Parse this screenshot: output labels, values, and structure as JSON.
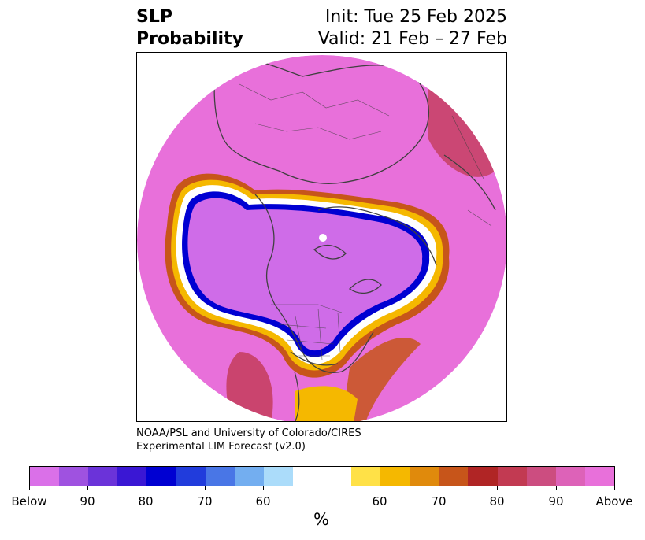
{
  "header": {
    "title_line1": "SLP",
    "title_line2": "Probability",
    "init": "Init: Tue 25 Feb 2025",
    "valid": "Valid: 21 Feb – 27 Feb"
  },
  "credit": {
    "line1": "NOAA/PSL and University of Colorado/CIRES",
    "line2": "Experimental LIM Forecast (v2.0)"
  },
  "colorbar": {
    "colors": [
      "#da70e8",
      "#9f52e0",
      "#6b33d9",
      "#3a17d4",
      "#0000d2",
      "#213cdc",
      "#4976e6",
      "#73aef0",
      "#abdcfa",
      "#ffffff",
      "#ffe147",
      "#f5b800",
      "#e08a0c",
      "#c7551a",
      "#b02525",
      "#c23a52",
      "#cc4d80",
      "#dd62b8",
      "#e870da"
    ],
    "labels": [
      "Below",
      "90",
      "80",
      "70",
      "60",
      "60",
      "70",
      "80",
      "90",
      "Above"
    ],
    "unit": "%"
  },
  "map": {
    "base_color": "#e870da",
    "negative_color": "#cf6ce8",
    "land_outline_color": "#404040"
  }
}
